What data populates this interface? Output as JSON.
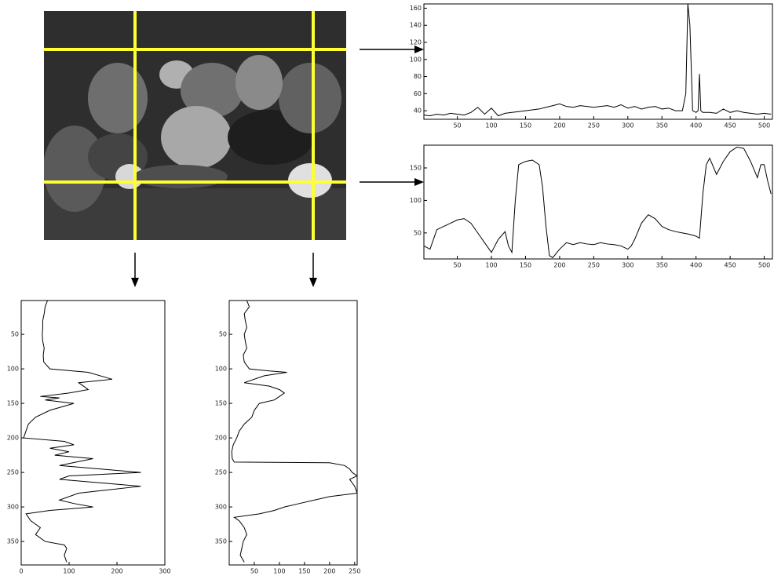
{
  "chart_data": [
    {
      "type": "line",
      "orientation": "horizontal",
      "color": "#000000",
      "x": [
        1,
        10,
        20,
        30,
        40,
        50,
        60,
        70,
        80,
        90,
        100,
        110,
        120,
        130,
        140,
        150,
        160,
        170,
        180,
        190,
        200,
        210,
        220,
        230,
        240,
        250,
        260,
        270,
        280,
        290,
        300,
        310,
        320,
        330,
        340,
        350,
        360,
        370,
        380,
        385,
        388,
        391,
        395,
        400,
        403,
        405,
        407,
        410,
        420,
        430,
        440,
        450,
        460,
        470,
        480,
        490,
        500,
        510
      ],
      "values": [
        35,
        34,
        36,
        35,
        37,
        36,
        35,
        38,
        44,
        36,
        43,
        34,
        37,
        38,
        39,
        40,
        41,
        42,
        44,
        46,
        48,
        45,
        44,
        46,
        45,
        44,
        45,
        46,
        44,
        47,
        43,
        45,
        42,
        44,
        45,
        42,
        43,
        40,
        40,
        60,
        165,
        140,
        40,
        38,
        40,
        83,
        40,
        38,
        38,
        37,
        42,
        38,
        40,
        38,
        37,
        36,
        37,
        36
      ],
      "xlim": [
        1,
        512
      ],
      "xticks": [
        50,
        100,
        150,
        200,
        250,
        300,
        350,
        400,
        450,
        500
      ],
      "ylim": [
        30,
        165
      ],
      "yticks": [
        40,
        60,
        80,
        100,
        120,
        140,
        160
      ]
    },
    {
      "type": "line",
      "orientation": "horizontal",
      "color": "#000000",
      "x": [
        1,
        10,
        20,
        30,
        40,
        50,
        60,
        70,
        80,
        90,
        100,
        110,
        120,
        125,
        130,
        135,
        140,
        150,
        160,
        170,
        175,
        180,
        185,
        190,
        200,
        210,
        220,
        230,
        240,
        250,
        260,
        270,
        280,
        290,
        300,
        305,
        310,
        320,
        330,
        340,
        350,
        360,
        370,
        380,
        390,
        400,
        405,
        410,
        415,
        420,
        430,
        440,
        450,
        460,
        470,
        480,
        490,
        495,
        500,
        505,
        510
      ],
      "values": [
        30,
        25,
        55,
        60,
        65,
        70,
        72,
        65,
        50,
        35,
        20,
        40,
        52,
        30,
        20,
        100,
        155,
        160,
        162,
        155,
        120,
        60,
        15,
        12,
        25,
        35,
        32,
        35,
        33,
        32,
        35,
        33,
        32,
        30,
        25,
        30,
        40,
        65,
        78,
        72,
        60,
        55,
        52,
        50,
        48,
        45,
        42,
        110,
        155,
        165,
        140,
        160,
        175,
        182,
        180,
        160,
        135,
        155,
        155,
        130,
        110
      ],
      "xlim": [
        1,
        512
      ],
      "xticks": [
        50,
        100,
        150,
        200,
        250,
        300,
        350,
        400,
        450,
        500
      ],
      "ylim": [
        10,
        185
      ],
      "yticks": [
        50,
        100,
        150
      ]
    },
    {
      "type": "line",
      "orientation": "vertical",
      "y_reversed": true,
      "color": "#000000",
      "y": [
        1,
        10,
        20,
        30,
        40,
        50,
        60,
        70,
        80,
        90,
        100,
        105,
        115,
        120,
        130,
        135,
        140,
        142,
        145,
        150,
        160,
        170,
        180,
        190,
        200,
        205,
        210,
        215,
        220,
        225,
        230,
        240,
        250,
        255,
        260,
        270,
        280,
        290,
        295,
        300,
        305,
        310,
        320,
        330,
        340,
        350,
        355,
        360,
        370,
        380
      ],
      "values": [
        55,
        50,
        48,
        45,
        45,
        44,
        45,
        48,
        46,
        47,
        60,
        140,
        190,
        120,
        140,
        100,
        40,
        80,
        50,
        110,
        60,
        30,
        15,
        10,
        5,
        90,
        110,
        60,
        100,
        70,
        150,
        80,
        250,
        100,
        80,
        250,
        120,
        80,
        110,
        150,
        60,
        10,
        20,
        40,
        30,
        50,
        90,
        95,
        90,
        95
      ],
      "xlim": [
        0,
        300
      ],
      "xticks": [
        0,
        100,
        200,
        300
      ],
      "ylim": [
        1,
        384
      ],
      "yticks": [
        50,
        100,
        150,
        200,
        250,
        300,
        350
      ]
    },
    {
      "type": "line",
      "orientation": "vertical",
      "y_reversed": true,
      "color": "#000000",
      "y": [
        1,
        10,
        20,
        30,
        40,
        50,
        60,
        70,
        80,
        90,
        100,
        103,
        105,
        110,
        120,
        125,
        130,
        135,
        140,
        145,
        150,
        160,
        170,
        180,
        190,
        200,
        210,
        220,
        230,
        235,
        236,
        240,
        245,
        250,
        255,
        260,
        270,
        280,
        285,
        290,
        295,
        300,
        305,
        310,
        315,
        320,
        330,
        340,
        350,
        360,
        370,
        380
      ],
      "values": [
        35,
        40,
        30,
        32,
        35,
        30,
        32,
        35,
        28,
        30,
        40,
        80,
        115,
        70,
        30,
        80,
        100,
        110,
        100,
        90,
        60,
        50,
        45,
        30,
        20,
        15,
        8,
        5,
        6,
        10,
        200,
        230,
        240,
        245,
        255,
        240,
        250,
        255,
        200,
        170,
        140,
        110,
        90,
        60,
        10,
        20,
        30,
        35,
        28,
        25,
        22,
        30
      ],
      "xlim": [
        0,
        255
      ],
      "xticks": [
        50,
        100,
        150,
        200,
        250
      ],
      "ylim": [
        1,
        384
      ],
      "yticks": [
        50,
        100,
        150,
        200,
        250,
        300,
        350
      ]
    }
  ]
}
